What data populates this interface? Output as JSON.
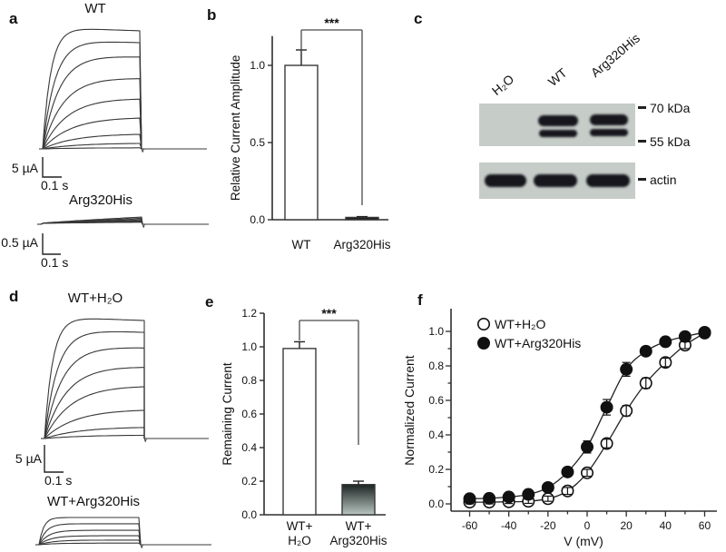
{
  "figure": {
    "background": "#ffffff",
    "trace_color": "#383838",
    "axis_color": "#2e2e2e"
  },
  "panels": {
    "a": {
      "label": "a",
      "top": {
        "title": "WT",
        "scale_v": "5 µA",
        "scale_h": "0.1 s",
        "trace_plateaus": [
          1.0,
          0.9,
          0.78,
          0.6,
          0.43,
          0.27,
          0.13,
          0.05,
          0.01
        ]
      },
      "bottom": {
        "title": "Arg320His",
        "scale_v": "0.5 µA",
        "scale_h": "0.1 s",
        "trace_plateaus": [
          1.0,
          0.8,
          0.62,
          0.45,
          0.3,
          0.18
        ]
      }
    },
    "b": {
      "label": "b"
    },
    "c": {
      "label": "c",
      "lane_labels": [
        "H₂O",
        "WT",
        "Arg320His"
      ],
      "marker_labels": [
        "70 kDa",
        "55 kDa",
        "actin"
      ],
      "band_lanes_top": [
        "WT",
        "Arg320His"
      ],
      "band_lanes_bottom": [
        "H₂O",
        "WT",
        "Arg320His"
      ],
      "blot_bg": "#c6ccc8",
      "band_color": "#15181b"
    },
    "d": {
      "label": "d",
      "top": {
        "title": "WT+H₂O",
        "scale_v": "5 µA",
        "scale_h": "0.1 s",
        "trace_plateaus": [
          1.0,
          0.9,
          0.77,
          0.61,
          0.45,
          0.25,
          0.1,
          0.03
        ]
      },
      "bottom": {
        "title": "WT+Arg320His",
        "trace_plateaus": [
          1.0,
          0.77,
          0.53,
          0.33,
          0.17,
          0.06
        ]
      }
    },
    "e": {
      "label": "e"
    },
    "f": {
      "label": "f"
    }
  },
  "chart_data": [
    {
      "panel": "b",
      "type": "bar",
      "ylabel": "Relative Current Amplitude",
      "categories": [
        "WT",
        "Arg320His"
      ],
      "values": [
        1.0,
        0.015
      ],
      "errors": [
        0.1,
        0.005
      ],
      "yticks": [
        0.0,
        0.5,
        1.0
      ],
      "ylim": [
        0,
        1.19
      ],
      "significance": {
        "label": "***"
      },
      "bar_fills": [
        "#ffffff",
        "#1e1e1e"
      ]
    },
    {
      "panel": "e",
      "type": "bar",
      "ylabel": "Remaining Current",
      "categories": [
        [
          "WT+",
          "H₂O"
        ],
        [
          "WT+",
          "Arg320His"
        ]
      ],
      "values": [
        0.99,
        0.18
      ],
      "errors": [
        0.04,
        0.02
      ],
      "yticks": [
        0.0,
        0.2,
        0.4,
        0.6,
        0.8,
        1.0,
        1.2
      ],
      "ylim": [
        0,
        1.2
      ],
      "significance": {
        "label": "***"
      },
      "bar_fills": [
        "#ffffff",
        "gradient"
      ],
      "gradient": [
        "#1b2322",
        "#b9c6c1"
      ]
    },
    {
      "panel": "f",
      "type": "scatter-line",
      "xlabel": "V (mV)",
      "ylabel": "Normalized Current",
      "x": [
        -60,
        -50,
        -40,
        -30,
        -20,
        -10,
        0,
        10,
        20,
        30,
        40,
        50,
        60
      ],
      "series": [
        {
          "name": "WT+H₂O",
          "marker": "open",
          "values": [
            0.01,
            0.01,
            0.012,
            0.015,
            0.03,
            0.075,
            0.18,
            0.35,
            0.54,
            0.7,
            0.82,
            0.92,
            0.99
          ],
          "errors": [
            0.01,
            0.01,
            0.01,
            0.012,
            0.015,
            0.02,
            0.02,
            0.025,
            0.03,
            0.03,
            0.025,
            0.02,
            0.012
          ]
        },
        {
          "name": "WT+Arg320His",
          "marker": "filled",
          "values": [
            0.03,
            0.032,
            0.04,
            0.055,
            0.095,
            0.185,
            0.33,
            0.56,
            0.78,
            0.885,
            0.94,
            0.97,
            0.995
          ],
          "errors": [
            0.012,
            0.012,
            0.012,
            0.015,
            0.018,
            0.025,
            0.035,
            0.045,
            0.04,
            0.022,
            0.018,
            0.014,
            0.01
          ]
        }
      ],
      "xticks": [
        -60,
        -40,
        -20,
        0,
        20,
        40,
        60
      ],
      "yticks": [
        0.0,
        0.2,
        0.4,
        0.6,
        0.8,
        1.0
      ],
      "xlim": [
        -68,
        66
      ],
      "ylim": [
        0,
        1.08
      ],
      "legend_position": "top-left"
    }
  ]
}
